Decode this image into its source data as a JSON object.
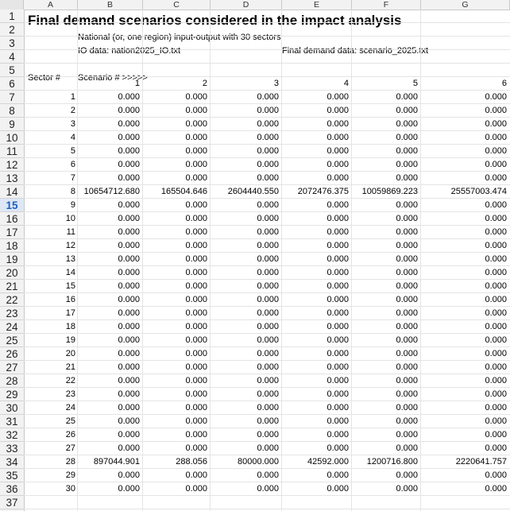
{
  "columns": [
    "A",
    "B",
    "C",
    "D",
    "E",
    "F",
    "G"
  ],
  "header": {
    "title": "Final demand scenarios considered in the impact analysis",
    "subtitle": "National (or, one region) input-output with 30 sectors",
    "io_data": "IO data:  nation2025_IO.txt",
    "fd_data": "Final demand data:  scenario_2025.txt",
    "sector_label": "Sector #",
    "scenario_label": "Scenario # >>>>>"
  },
  "scenario_numbers": [
    "1",
    "2",
    "3",
    "4",
    "5",
    "6"
  ],
  "selected_row": 15,
  "sectors": [
    {
      "n": "1",
      "v": [
        "0.000",
        "0.000",
        "0.000",
        "0.000",
        "0.000",
        "0.000"
      ]
    },
    {
      "n": "2",
      "v": [
        "0.000",
        "0.000",
        "0.000",
        "0.000",
        "0.000",
        "0.000"
      ]
    },
    {
      "n": "3",
      "v": [
        "0.000",
        "0.000",
        "0.000",
        "0.000",
        "0.000",
        "0.000"
      ]
    },
    {
      "n": "4",
      "v": [
        "0.000",
        "0.000",
        "0.000",
        "0.000",
        "0.000",
        "0.000"
      ]
    },
    {
      "n": "5",
      "v": [
        "0.000",
        "0.000",
        "0.000",
        "0.000",
        "0.000",
        "0.000"
      ]
    },
    {
      "n": "6",
      "v": [
        "0.000",
        "0.000",
        "0.000",
        "0.000",
        "0.000",
        "0.000"
      ]
    },
    {
      "n": "7",
      "v": [
        "0.000",
        "0.000",
        "0.000",
        "0.000",
        "0.000",
        "0.000"
      ]
    },
    {
      "n": "8",
      "v": [
        "10654712.680",
        "165504.646",
        "2604440.550",
        "2072476.375",
        "10059869.223",
        "25557003.474"
      ]
    },
    {
      "n": "9",
      "v": [
        "0.000",
        "0.000",
        "0.000",
        "0.000",
        "0.000",
        "0.000"
      ]
    },
    {
      "n": "10",
      "v": [
        "0.000",
        "0.000",
        "0.000",
        "0.000",
        "0.000",
        "0.000"
      ]
    },
    {
      "n": "11",
      "v": [
        "0.000",
        "0.000",
        "0.000",
        "0.000",
        "0.000",
        "0.000"
      ]
    },
    {
      "n": "12",
      "v": [
        "0.000",
        "0.000",
        "0.000",
        "0.000",
        "0.000",
        "0.000"
      ]
    },
    {
      "n": "13",
      "v": [
        "0.000",
        "0.000",
        "0.000",
        "0.000",
        "0.000",
        "0.000"
      ]
    },
    {
      "n": "14",
      "v": [
        "0.000",
        "0.000",
        "0.000",
        "0.000",
        "0.000",
        "0.000"
      ]
    },
    {
      "n": "15",
      "v": [
        "0.000",
        "0.000",
        "0.000",
        "0.000",
        "0.000",
        "0.000"
      ]
    },
    {
      "n": "16",
      "v": [
        "0.000",
        "0.000",
        "0.000",
        "0.000",
        "0.000",
        "0.000"
      ]
    },
    {
      "n": "17",
      "v": [
        "0.000",
        "0.000",
        "0.000",
        "0.000",
        "0.000",
        "0.000"
      ]
    },
    {
      "n": "18",
      "v": [
        "0.000",
        "0.000",
        "0.000",
        "0.000",
        "0.000",
        "0.000"
      ]
    },
    {
      "n": "19",
      "v": [
        "0.000",
        "0.000",
        "0.000",
        "0.000",
        "0.000",
        "0.000"
      ]
    },
    {
      "n": "20",
      "v": [
        "0.000",
        "0.000",
        "0.000",
        "0.000",
        "0.000",
        "0.000"
      ]
    },
    {
      "n": "21",
      "v": [
        "0.000",
        "0.000",
        "0.000",
        "0.000",
        "0.000",
        "0.000"
      ]
    },
    {
      "n": "22",
      "v": [
        "0.000",
        "0.000",
        "0.000",
        "0.000",
        "0.000",
        "0.000"
      ]
    },
    {
      "n": "23",
      "v": [
        "0.000",
        "0.000",
        "0.000",
        "0.000",
        "0.000",
        "0.000"
      ]
    },
    {
      "n": "24",
      "v": [
        "0.000",
        "0.000",
        "0.000",
        "0.000",
        "0.000",
        "0.000"
      ]
    },
    {
      "n": "25",
      "v": [
        "0.000",
        "0.000",
        "0.000",
        "0.000",
        "0.000",
        "0.000"
      ]
    },
    {
      "n": "26",
      "v": [
        "0.000",
        "0.000",
        "0.000",
        "0.000",
        "0.000",
        "0.000"
      ]
    },
    {
      "n": "27",
      "v": [
        "0.000",
        "0.000",
        "0.000",
        "0.000",
        "0.000",
        "0.000"
      ]
    },
    {
      "n": "28",
      "v": [
        "897044.901",
        "288.056",
        "80000.000",
        "42592.000",
        "1200716.800",
        "2220641.757"
      ]
    },
    {
      "n": "29",
      "v": [
        "0.000",
        "0.000",
        "0.000",
        "0.000",
        "0.000",
        "0.000"
      ]
    },
    {
      "n": "30",
      "v": [
        "0.000",
        "0.000",
        "0.000",
        "0.000",
        "0.000",
        "0.000"
      ]
    }
  ]
}
